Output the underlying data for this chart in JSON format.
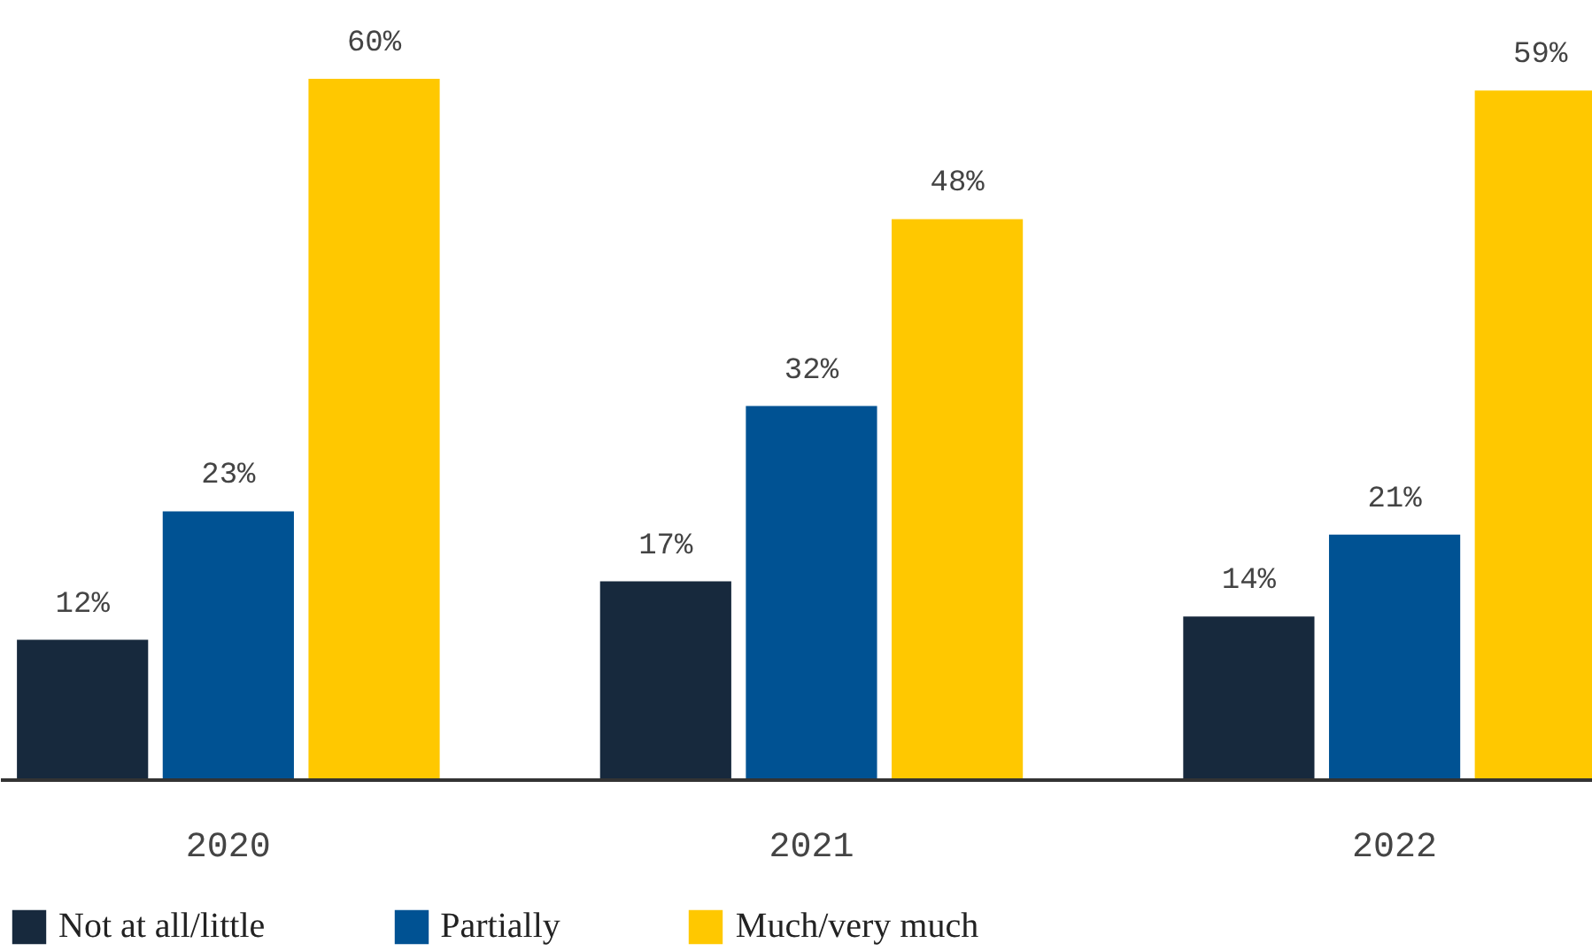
{
  "chart_data": {
    "type": "bar",
    "categories": [
      "2020",
      "2021",
      "2022"
    ],
    "series": [
      {
        "name": "Not at all/little",
        "color": "#17293d",
        "values": [
          12,
          17,
          14
        ],
        "value_labels": [
          "12%",
          "17%",
          "14%"
        ]
      },
      {
        "name": "Partially",
        "color": "#005293",
        "values": [
          23,
          32,
          21
        ],
        "value_labels": [
          "23%",
          "32%",
          "21%"
        ]
      },
      {
        "name": "Much/very much",
        "color": "#ffc800",
        "values": [
          60,
          48,
          59
        ],
        "value_labels": [
          "60%",
          "48%",
          "59%"
        ]
      }
    ],
    "data_labels": true,
    "legend": "bottom"
  }
}
